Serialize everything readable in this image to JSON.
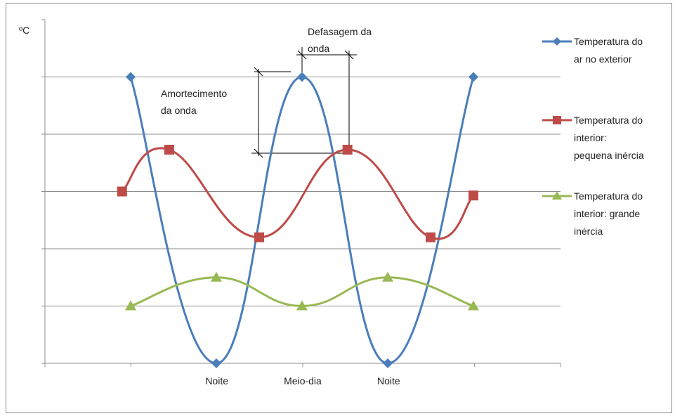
{
  "chart_data": {
    "type": "line",
    "ylabel": "ºC",
    "xlabel": "",
    "title": "",
    "grid": true,
    "legend_position": "right",
    "x_ticks": [
      "",
      "",
      "Noite",
      "",
      "Meio-dia",
      "",
      "Noite",
      "",
      "",
      ""
    ],
    "series": [
      {
        "name": "Temperatura do ar no exterior",
        "color": "#4a7ebb",
        "marker": "diamond",
        "x": [
          2,
          3,
          4,
          5,
          6
        ],
        "y": [
          5,
          0,
          5,
          0,
          5
        ]
      },
      {
        "name": "Temperatura do interior: pequena inércia",
        "color": "#be4b48",
        "marker": "square",
        "x": [
          1.9,
          2.45,
          3.5,
          4.53,
          5.5,
          6.0
        ],
        "y": [
          3.0,
          3.73,
          2.2,
          3.73,
          2.2,
          2.93
        ]
      },
      {
        "name": "Temperatura do interior: grande inércia",
        "color": "#98b954",
        "marker": "triangle",
        "x": [
          2,
          3,
          4,
          5,
          6
        ],
        "y": [
          1,
          1.5,
          1,
          1.5,
          1
        ]
      }
    ],
    "ylim": [
      0,
      6
    ],
    "xlim": [
      0,
      7
    ],
    "annotations": {
      "amortecimento": "Amortecimento da onda",
      "defasagem": "Defasagem da onda"
    }
  }
}
